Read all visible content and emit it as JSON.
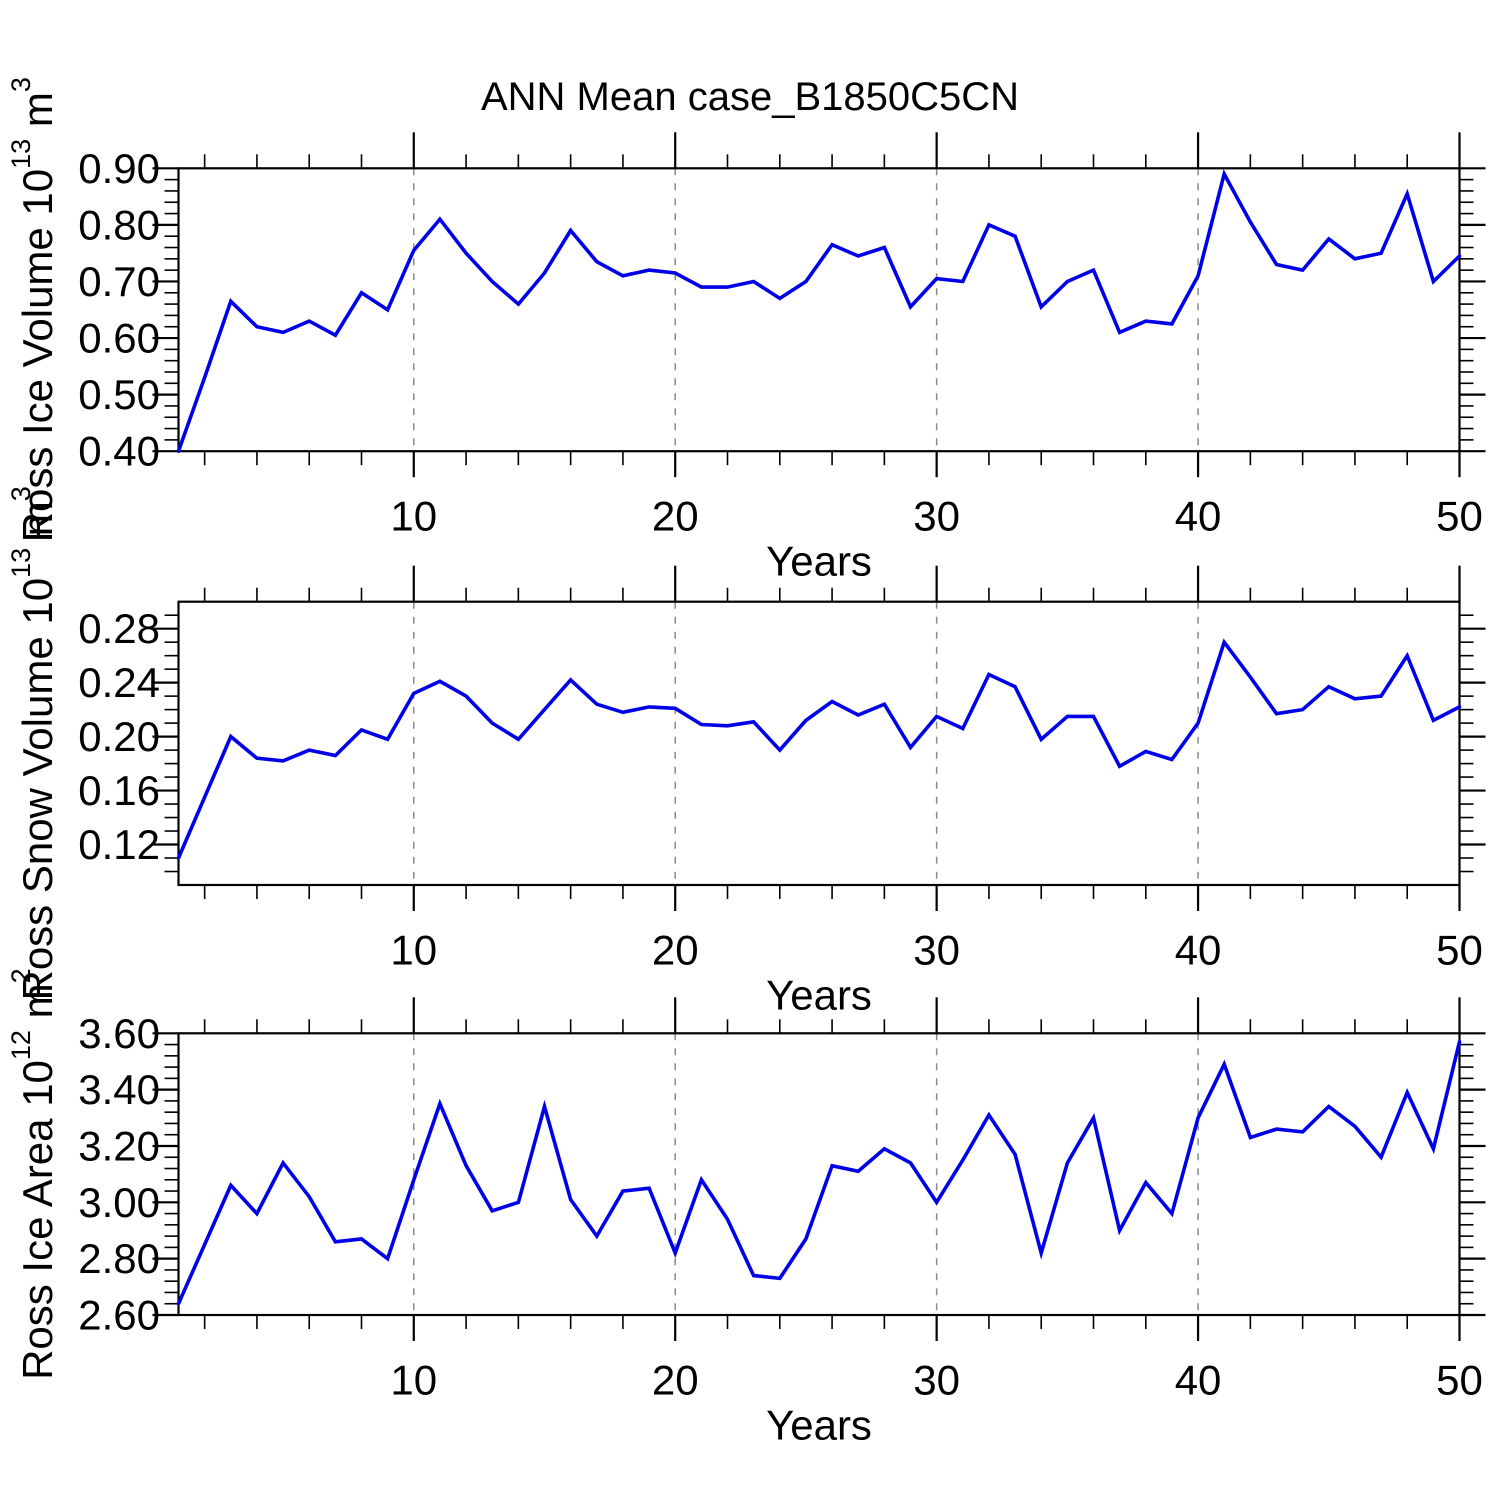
{
  "title": "ANN Mean case_B1850C5CN",
  "colors": {
    "line": "#0000e8",
    "grid": "#8a8a8a",
    "axis": "#000000",
    "text": "#000000",
    "background": "#ffffff"
  },
  "chart_data": [
    {
      "id": "ross-ice-volume",
      "type": "line",
      "title": "",
      "xlabel": "Years",
      "ylabel_plain": "Ross Ice Volume 10^13 m^3",
      "ylabel_rich": [
        {
          "t": "Ross Ice Volume 10"
        },
        {
          "t": "13",
          "sup": true
        },
        {
          "t": " m"
        },
        {
          "t": "3",
          "sup": true
        }
      ],
      "xlim": [
        1,
        50
      ],
      "ylim": [
        0.4,
        0.9
      ],
      "xticks": [
        10,
        20,
        30,
        40,
        50
      ],
      "xtick_labels": [
        "10",
        "20",
        "30",
        "40",
        "50"
      ],
      "x_minor_step": 2,
      "yticks": [
        0.4,
        0.5,
        0.6,
        0.7,
        0.8,
        0.9
      ],
      "ytick_labels": [
        "0.40",
        "0.50",
        "0.60",
        "0.70",
        "0.80",
        "0.90"
      ],
      "y_minor_step": 0.02,
      "grid_x": [
        10,
        20,
        30,
        40
      ],
      "grid_style": "vertical-dashed",
      "legend": "none",
      "x": [
        1,
        2,
        3,
        4,
        5,
        6,
        7,
        8,
        9,
        10,
        11,
        12,
        13,
        14,
        15,
        16,
        17,
        18,
        19,
        20,
        21,
        22,
        23,
        24,
        25,
        26,
        27,
        28,
        29,
        30,
        31,
        32,
        33,
        34,
        35,
        36,
        37,
        38,
        39,
        40,
        41,
        42,
        43,
        44,
        45,
        46,
        47,
        48,
        49,
        50
      ],
      "values": [
        0.4,
        0.53,
        0.665,
        0.62,
        0.61,
        0.63,
        0.605,
        0.68,
        0.65,
        0.755,
        0.81,
        0.75,
        0.7,
        0.66,
        0.715,
        0.79,
        0.735,
        0.71,
        0.72,
        0.715,
        0.69,
        0.69,
        0.7,
        0.67,
        0.7,
        0.765,
        0.745,
        0.76,
        0.655,
        0.705,
        0.7,
        0.8,
        0.78,
        0.655,
        0.7,
        0.72,
        0.61,
        0.63,
        0.625,
        0.71,
        0.89,
        0.805,
        0.73,
        0.72,
        0.775,
        0.74,
        0.75,
        0.855,
        0.7,
        0.745
      ]
    },
    {
      "id": "ross-snow-volume",
      "type": "line",
      "title": "",
      "xlabel": "Years",
      "ylabel_plain": "Ross Snow Volume 10^13 m^3",
      "ylabel_rich": [
        {
          "t": "Ross Snow Volume 10"
        },
        {
          "t": "13",
          "sup": true
        },
        {
          "t": " m"
        },
        {
          "t": "3",
          "sup": true
        }
      ],
      "xlim": [
        1,
        50
      ],
      "ylim": [
        0.09,
        0.3
      ],
      "xticks": [
        10,
        20,
        30,
        40,
        50
      ],
      "xtick_labels": [
        "10",
        "20",
        "30",
        "40",
        "50"
      ],
      "x_minor_step": 2,
      "yticks": [
        0.12,
        0.16,
        0.2,
        0.24,
        0.28
      ],
      "ytick_labels": [
        "0.12",
        "0.16",
        "0.20",
        "0.24",
        "0.28"
      ],
      "y_minor_step": 0.01,
      "grid_x": [
        10,
        20,
        30,
        40
      ],
      "grid_style": "vertical-dashed",
      "legend": "none",
      "x": [
        1,
        2,
        3,
        4,
        5,
        6,
        7,
        8,
        9,
        10,
        11,
        12,
        13,
        14,
        15,
        16,
        17,
        18,
        19,
        20,
        21,
        22,
        23,
        24,
        25,
        26,
        27,
        28,
        29,
        30,
        31,
        32,
        33,
        34,
        35,
        36,
        37,
        38,
        39,
        40,
        41,
        42,
        43,
        44,
        45,
        46,
        47,
        48,
        49,
        50
      ],
      "values": [
        0.11,
        0.155,
        0.2,
        0.184,
        0.182,
        0.19,
        0.186,
        0.205,
        0.198,
        0.232,
        0.241,
        0.23,
        0.21,
        0.198,
        0.22,
        0.242,
        0.224,
        0.218,
        0.222,
        0.221,
        0.209,
        0.208,
        0.211,
        0.19,
        0.212,
        0.226,
        0.216,
        0.224,
        0.192,
        0.215,
        0.206,
        0.246,
        0.237,
        0.198,
        0.215,
        0.215,
        0.178,
        0.189,
        0.183,
        0.21,
        0.27,
        0.244,
        0.217,
        0.22,
        0.237,
        0.228,
        0.23,
        0.26,
        0.212,
        0.222
      ]
    },
    {
      "id": "ross-ice-area",
      "type": "line",
      "title": "",
      "xlabel": "Years",
      "ylabel_plain": "Ross Ice Area 10^12 m^2",
      "ylabel_rich": [
        {
          "t": "Ross Ice Area 10"
        },
        {
          "t": "12",
          "sup": true
        },
        {
          "t": " m"
        },
        {
          "t": "2",
          "sup": true
        }
      ],
      "xlim": [
        1,
        50
      ],
      "ylim": [
        2.6,
        3.6
      ],
      "xticks": [
        10,
        20,
        30,
        40,
        50
      ],
      "xtick_labels": [
        "10",
        "20",
        "30",
        "40",
        "50"
      ],
      "x_minor_step": 2,
      "yticks": [
        2.6,
        2.8,
        3.0,
        3.2,
        3.4,
        3.6
      ],
      "ytick_labels": [
        "2.60",
        "2.80",
        "3.00",
        "3.20",
        "3.40",
        "3.60"
      ],
      "y_minor_step": 0.04,
      "grid_x": [
        10,
        20,
        30,
        40
      ],
      "grid_style": "vertical-dashed",
      "legend": "none",
      "x": [
        1,
        2,
        3,
        4,
        5,
        6,
        7,
        8,
        9,
        10,
        11,
        12,
        13,
        14,
        15,
        16,
        17,
        18,
        19,
        20,
        21,
        22,
        23,
        24,
        25,
        26,
        27,
        28,
        29,
        30,
        31,
        32,
        33,
        34,
        35,
        36,
        37,
        38,
        39,
        40,
        41,
        42,
        43,
        44,
        45,
        46,
        47,
        48,
        49,
        50
      ],
      "values": [
        2.64,
        2.85,
        3.06,
        2.96,
        3.14,
        3.02,
        2.86,
        2.87,
        2.8,
        3.08,
        3.35,
        3.13,
        2.97,
        3.0,
        3.34,
        3.01,
        2.88,
        3.04,
        3.05,
        2.82,
        3.08,
        2.94,
        2.74,
        2.73,
        2.87,
        3.13,
        3.11,
        3.19,
        3.14,
        3.0,
        3.15,
        3.31,
        3.17,
        2.82,
        3.14,
        3.3,
        2.9,
        3.07,
        2.96,
        3.3,
        3.49,
        3.23,
        3.26,
        3.25,
        3.34,
        3.27,
        3.16,
        3.39,
        3.19,
        3.57
      ]
    }
  ]
}
